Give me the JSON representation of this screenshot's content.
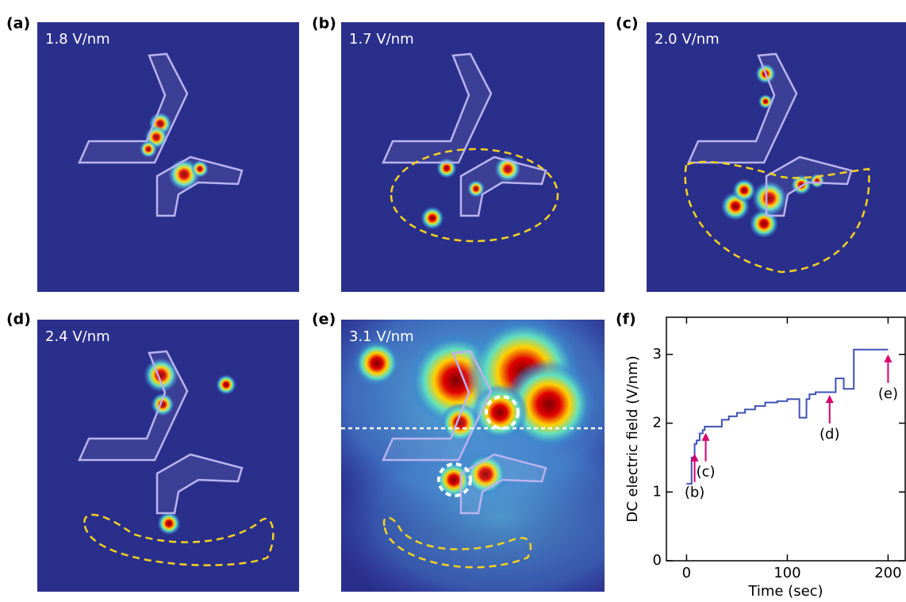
{
  "panels": [
    {
      "label": "(a)",
      "field": "1.8 V/nm"
    },
    {
      "label": "(b)",
      "field": "1.7 V/nm"
    },
    {
      "label": "(c)",
      "field": "2.0 V/nm"
    },
    {
      "label": "(d)",
      "field": "2.4 V/nm"
    },
    {
      "label": "(e)",
      "field": "3.1 V/nm"
    }
  ],
  "chart_data": {
    "type": "line",
    "label": "(f)",
    "x_label": "Time (sec)",
    "y_label": "DC electric field (V/nm)",
    "xlim": [
      -20,
      217
    ],
    "ylim": [
      0,
      3.54
    ],
    "xticks": [
      0,
      100,
      200
    ],
    "yticks": [
      0,
      1,
      2,
      3
    ],
    "series": [
      {
        "color": "#3f51b5",
        "x": [
          0,
          5,
          5,
          8,
          8,
          10,
          10,
          13,
          13,
          16,
          16,
          18,
          18,
          35,
          35,
          42,
          42,
          50,
          50,
          58,
          58,
          68,
          68,
          78,
          78,
          90,
          90,
          100,
          100,
          112,
          112,
          119,
          119,
          122,
          122,
          128,
          128,
          148,
          148,
          156,
          156,
          166,
          166,
          200
        ],
        "values": [
          1.12,
          1.12,
          1.5,
          1.5,
          1.7,
          1.7,
          1.75,
          1.75,
          1.85,
          1.85,
          1.9,
          1.9,
          1.95,
          1.95,
          2.05,
          2.05,
          2.1,
          2.1,
          2.15,
          2.15,
          2.2,
          2.2,
          2.25,
          2.25,
          2.3,
          2.3,
          2.32,
          2.32,
          2.35,
          2.35,
          2.08,
          2.08,
          2.35,
          2.35,
          2.42,
          2.42,
          2.45,
          2.45,
          2.65,
          2.65,
          2.5,
          2.5,
          3.07,
          3.07
        ]
      }
    ],
    "annotations": [
      {
        "text": "(b)",
        "x": 8,
        "y": 1.56,
        "color": "#d6006f"
      },
      {
        "text": "(c)",
        "x": 19,
        "y": 1.86,
        "color": "#d6006f"
      },
      {
        "text": "(d)",
        "x": 142,
        "y": 2.41,
        "color": "#d6006f"
      },
      {
        "text": "(e)",
        "x": 200,
        "y": 3.0,
        "color": "#d6006f"
      }
    ]
  }
}
